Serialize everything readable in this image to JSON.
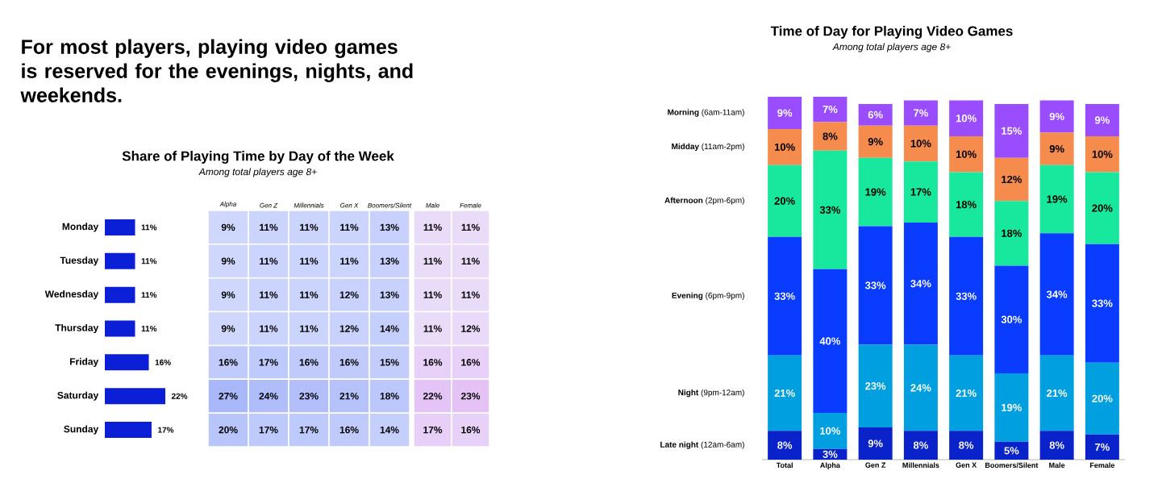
{
  "chart_data": [
    {
      "type": "bar",
      "orientation": "horizontal",
      "annotations": [
        "For most players, playing video games is reserved for the evenings, nights, and weekends."
      ],
      "categories": [
        "Monday",
        "Tuesday",
        "Wednesday",
        "Thursday",
        "Friday",
        "Saturday",
        "Sunday"
      ],
      "values": [
        11,
        11,
        11,
        11,
        16,
        22,
        17
      ],
      "value_labels": [
        "11%",
        "11%",
        "11%",
        "11%",
        "16%",
        "22%",
        "17%"
      ],
      "color": "#0a1fd6"
    },
    {
      "type": "heatmap",
      "title": "Share of Playing Time by Day of the Week",
      "subtitle": "Among total players age 8+",
      "categories": [
        "Alpha",
        "Gen Z",
        "Millennials",
        "Gen X",
        "Boomers/Silent"
      ],
      "y_categories": [
        null,
        null,
        null,
        null,
        null,
        null,
        null
      ],
      "cells": [
        [
          9,
          11,
          11,
          11,
          13
        ],
        [
          9,
          11,
          11,
          11,
          13
        ],
        [
          9,
          11,
          11,
          12,
          13
        ],
        [
          9,
          11,
          11,
          12,
          14
        ],
        [
          16,
          17,
          16,
          16,
          15
        ],
        [
          27,
          24,
          23,
          21,
          18
        ],
        [
          20,
          17,
          17,
          16,
          14
        ]
      ],
      "cell_labels": [
        [
          "9%",
          "11%",
          "11%",
          "11%",
          "13%"
        ],
        [
          "9%",
          "11%",
          "11%",
          "11%",
          "13%"
        ],
        [
          "9%",
          "11%",
          "11%",
          "12%",
          "13%"
        ],
        [
          "9%",
          "11%",
          "11%",
          "12%",
          "14%"
        ],
        [
          "16%",
          "17%",
          "16%",
          "16%",
          "15%"
        ],
        [
          "27%",
          "24%",
          "23%",
          "21%",
          "18%"
        ],
        [
          "20%",
          "17%",
          "17%",
          "16%",
          "14%"
        ]
      ]
    },
    {
      "type": "heatmap",
      "categories": [
        "Male",
        "Female"
      ],
      "y_categories": [
        null,
        null,
        null,
        null,
        null,
        null,
        null
      ],
      "cells": [
        [
          11,
          11
        ],
        [
          11,
          11
        ],
        [
          11,
          11
        ],
        [
          11,
          12
        ],
        [
          16,
          16
        ],
        [
          22,
          23
        ],
        [
          17,
          16
        ]
      ],
      "cell_labels": [
        [
          "11%",
          "11%"
        ],
        [
          "11%",
          "11%"
        ],
        [
          "11%",
          "11%"
        ],
        [
          "11%",
          "12%"
        ],
        [
          "16%",
          "16%"
        ],
        [
          "22%",
          "23%"
        ],
        [
          "17%",
          "16%"
        ]
      ]
    },
    {
      "type": "bar",
      "stacked": true,
      "title": "Time of Day for Playing Video Games",
      "subtitle": "Among total players age 8+",
      "categories": [
        "Total",
        "Alpha",
        "Gen Z",
        "Millennials",
        "Gen X",
        "Boomers/Silent",
        "Male",
        "Female"
      ],
      "series": [
        {
          "name": "**Late night** (12am-6am)",
          "color": "#0a22c9",
          "values": [
            8,
            3,
            9,
            8,
            8,
            5,
            8,
            7
          ],
          "value_labels": [
            "8%",
            "3%",
            "9%",
            "8%",
            "8%",
            "5%",
            "8%",
            "7%"
          ]
        },
        {
          "name": "**Night** (9pm-12am)",
          "color": "#00a0e0",
          "values": [
            21,
            10,
            23,
            24,
            21,
            19,
            21,
            20
          ],
          "value_labels": [
            "21%",
            "10%",
            "23%",
            "24%",
            "21%",
            "19%",
            "21%",
            "20%"
          ]
        },
        {
          "name": "**Evening** (6pm-9pm)",
          "color": "#0a3cff",
          "values": [
            33,
            40,
            33,
            34,
            33,
            30,
            34,
            33
          ],
          "value_labels": [
            "33%",
            "40%",
            "33%",
            "34%",
            "33%",
            "30%",
            "34%",
            "33%"
          ]
        },
        {
          "name": "**Afternoon** (2pm-6pm)",
          "color": "#17e89e",
          "values": [
            20,
            33,
            19,
            17,
            18,
            18,
            19,
            20
          ],
          "value_labels": [
            "20%",
            "33%",
            "19%",
            "17%",
            "18%",
            "18%",
            "19%",
            "20%"
          ]
        },
        {
          "name": "**Midday** (11am-2pm)",
          "color": "#f58b4c",
          "values": [
            10,
            8,
            9,
            10,
            10,
            12,
            9,
            10
          ],
          "value_labels": [
            "10%",
            "8%",
            "9%",
            "10%",
            "10%",
            "12%",
            "9%",
            "10%"
          ]
        },
        {
          "name": "**Morning** (6am-11am)",
          "color": "#9a4dff",
          "values": [
            9,
            7,
            6,
            7,
            10,
            15,
            9,
            9
          ],
          "value_labels": [
            "9%",
            "7%",
            "6%",
            "7%",
            "10%",
            "15%",
            "9%",
            "9%"
          ]
        }
      ]
    }
  ]
}
